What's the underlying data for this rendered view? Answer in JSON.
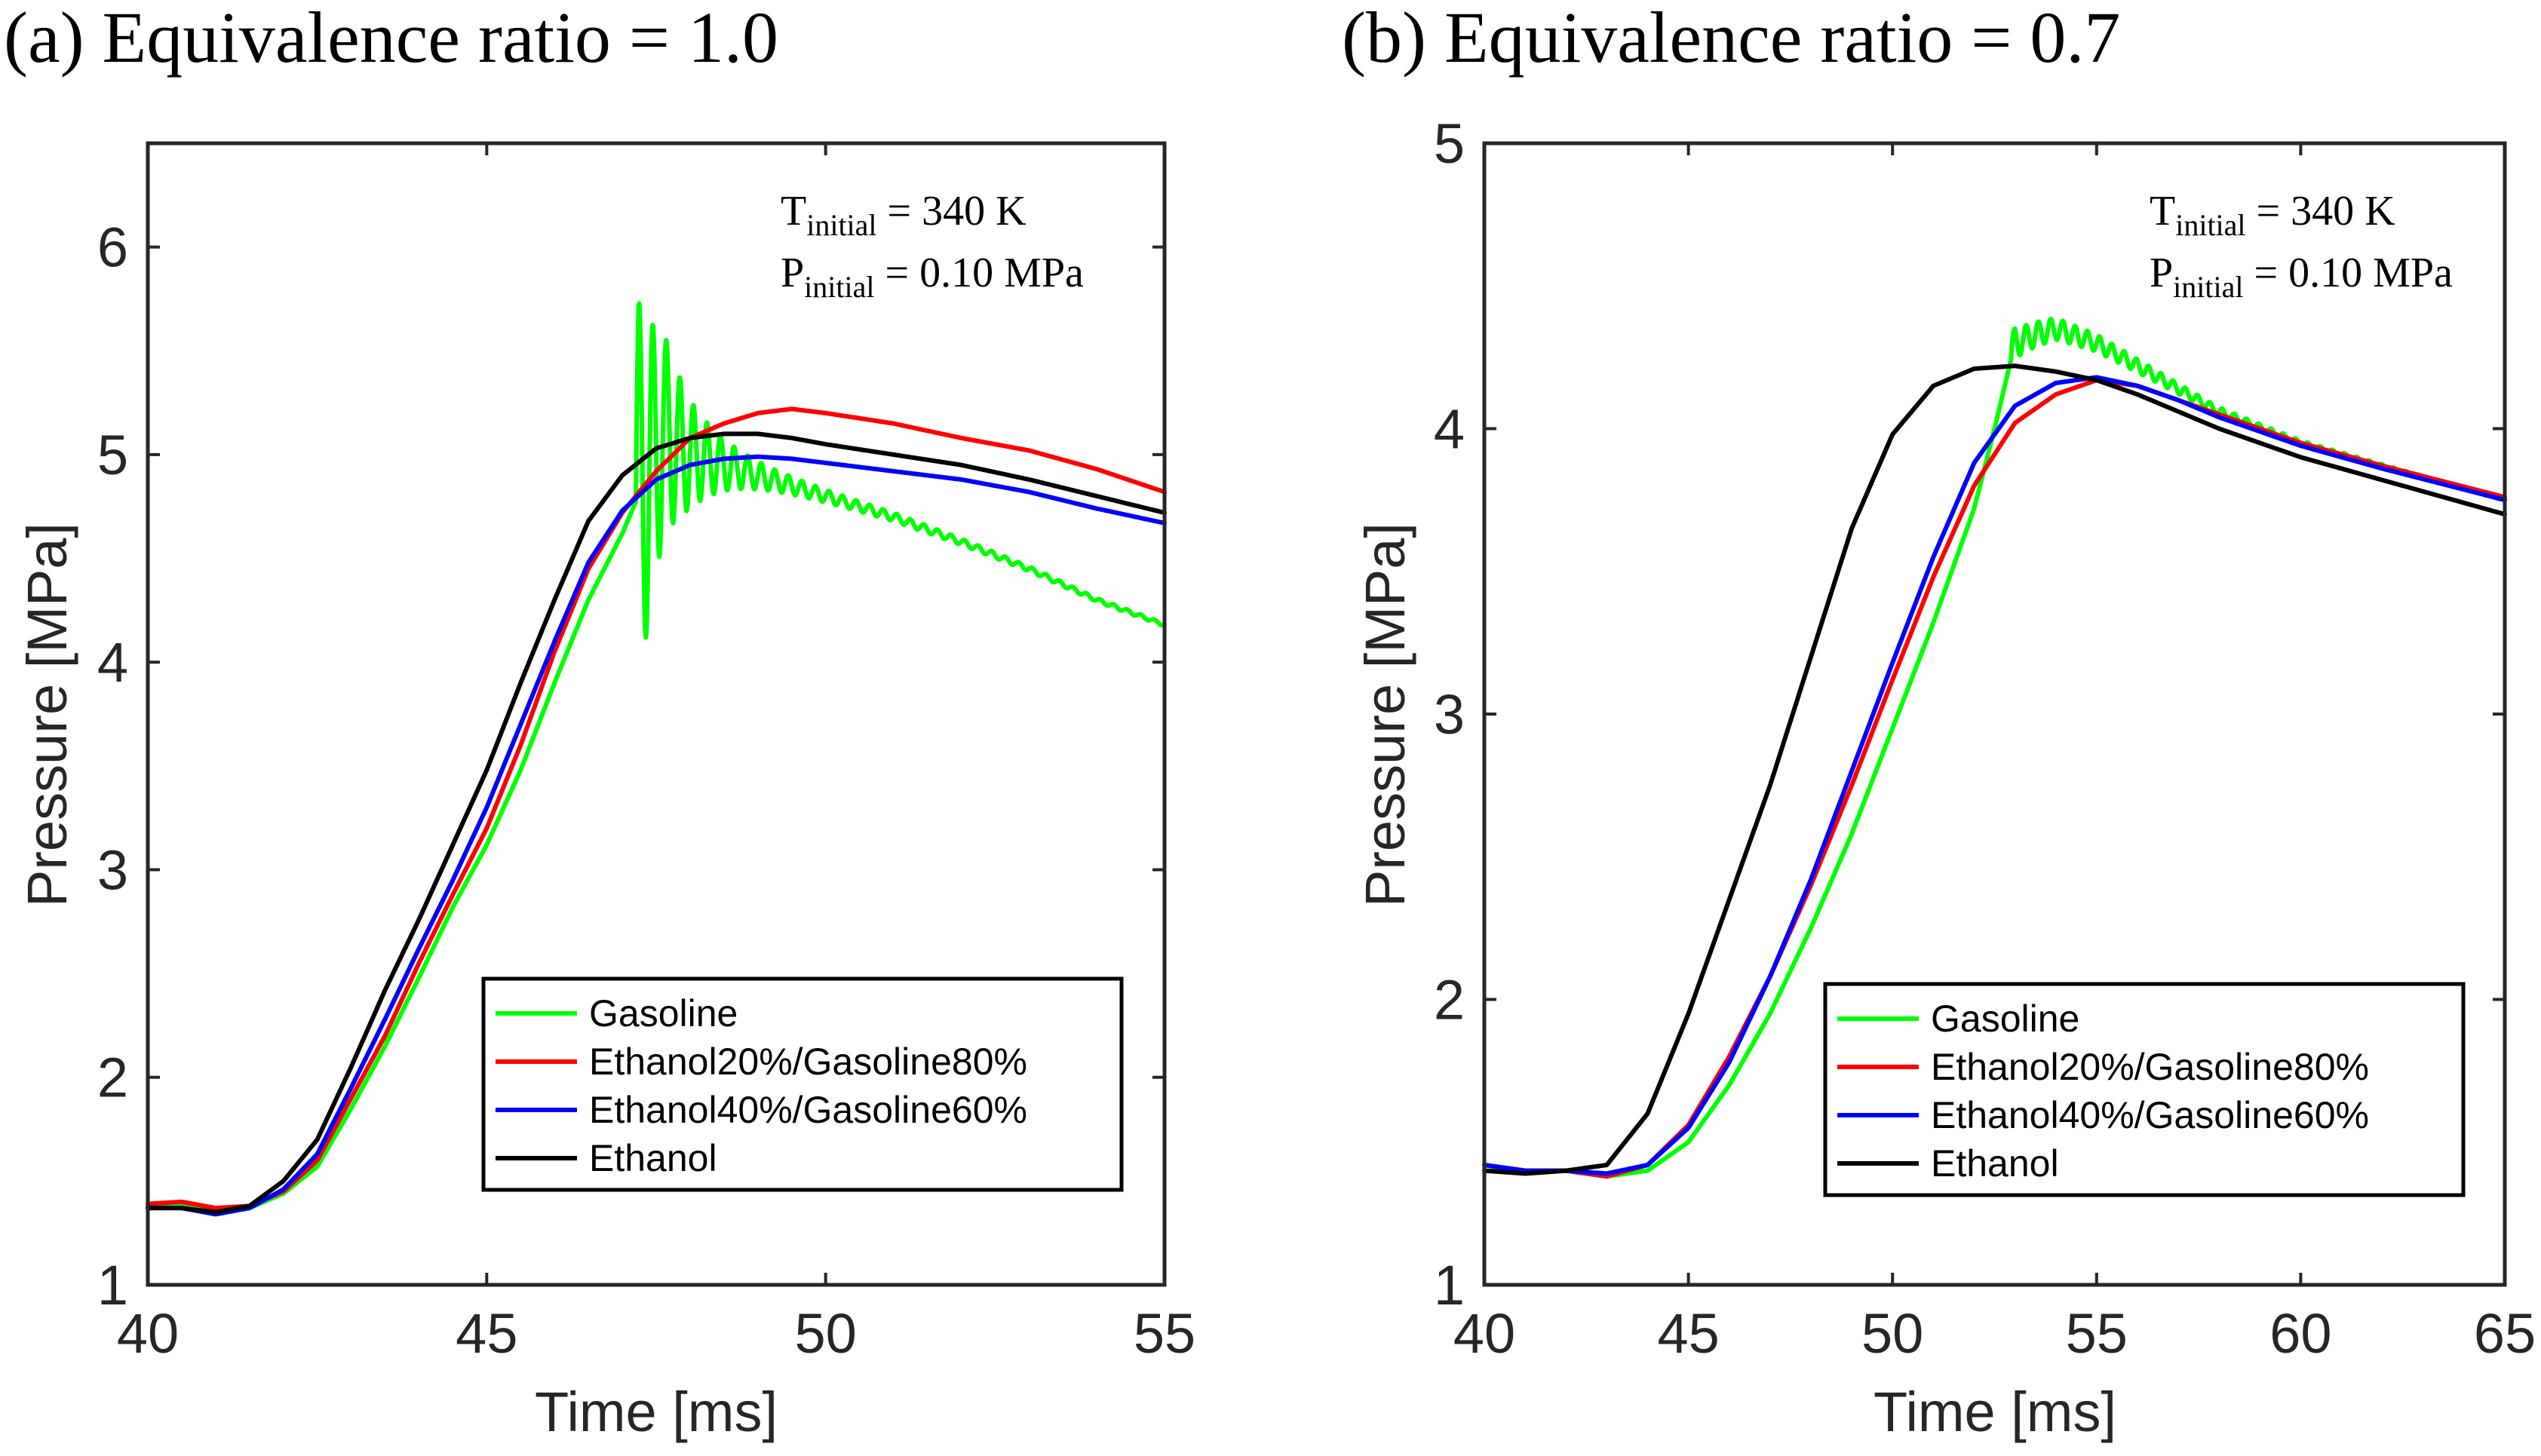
{
  "chart_data": [
    {
      "type": "line",
      "title": "(a) Equivalence ratio = 1.0",
      "xlabel": "Time [ms]",
      "ylabel": "Pressure [MPa]",
      "xlim": [
        40,
        55
      ],
      "ylim": [
        1,
        6.5
      ],
      "xticks": [
        "40",
        "45",
        "50",
        "55"
      ],
      "yticks": [
        "1",
        "2",
        "3",
        "4",
        "5",
        "6"
      ],
      "annotation": {
        "line1_main": "T",
        "line1_sub": "initial",
        "line1_rest": " = 340 K",
        "line2_main": "P",
        "line2_sub": "initial",
        "line2_rest": " = 0.10 MPa"
      },
      "legend": "bottom-right",
      "series": [
        {
          "name": "Gasoline",
          "color": "#00ff00",
          "oscillation": {
            "start": 47.2,
            "amp": 0.95,
            "period": 0.2,
            "decay": 0.55
          },
          "x": [
            40,
            40.5,
            41,
            41.5,
            42,
            42.5,
            43,
            43.5,
            44,
            44.5,
            45,
            45.5,
            46,
            46.5,
            47,
            47.3,
            47.6,
            48,
            48.5,
            49,
            49.5,
            50,
            51,
            52,
            53,
            54,
            55
          ],
          "y": [
            1.38,
            1.38,
            1.35,
            1.37,
            1.44,
            1.57,
            1.85,
            2.15,
            2.48,
            2.82,
            3.12,
            3.48,
            3.9,
            4.3,
            4.62,
            4.85,
            5.1,
            5.0,
            4.95,
            4.9,
            4.85,
            4.8,
            4.7,
            4.58,
            4.45,
            4.3,
            4.18
          ]
        },
        {
          "name": "Ethanol20%/Gasoline80%",
          "color": "#ff0000",
          "x": [
            40,
            40.5,
            41,
            41.5,
            42,
            42.5,
            43,
            43.5,
            44,
            44.5,
            45,
            45.5,
            46,
            46.5,
            47,
            47.5,
            48,
            48.5,
            49,
            49.5,
            50,
            51,
            52,
            53,
            54,
            55
          ],
          "y": [
            1.39,
            1.4,
            1.37,
            1.38,
            1.45,
            1.6,
            1.9,
            2.2,
            2.55,
            2.88,
            3.2,
            3.6,
            4.05,
            4.45,
            4.72,
            4.92,
            5.08,
            5.15,
            5.2,
            5.22,
            5.2,
            5.15,
            5.08,
            5.02,
            4.93,
            4.82
          ]
        },
        {
          "name": "Ethanol40%/Gasoline60%",
          "color": "#0000ff",
          "x": [
            40,
            40.5,
            41,
            41.5,
            42,
            42.5,
            43,
            43.5,
            44,
            44.5,
            45,
            45.5,
            46,
            46.5,
            47,
            47.5,
            48,
            48.5,
            49,
            49.5,
            50,
            51,
            52,
            53,
            54,
            55
          ],
          "y": [
            1.37,
            1.37,
            1.34,
            1.37,
            1.46,
            1.63,
            1.95,
            2.28,
            2.62,
            2.95,
            3.3,
            3.7,
            4.1,
            4.48,
            4.73,
            4.88,
            4.95,
            4.98,
            4.99,
            4.98,
            4.96,
            4.92,
            4.88,
            4.82,
            4.74,
            4.67
          ]
        },
        {
          "name": "Ethanol",
          "color": "#000000",
          "x": [
            40,
            40.5,
            41,
            41.5,
            42,
            42.5,
            43,
            43.5,
            44,
            44.5,
            45,
            45.5,
            46,
            46.5,
            47,
            47.5,
            48,
            48.5,
            49,
            49.5,
            50,
            51,
            52,
            53,
            54,
            55
          ],
          "y": [
            1.37,
            1.37,
            1.35,
            1.38,
            1.5,
            1.7,
            2.05,
            2.42,
            2.76,
            3.12,
            3.48,
            3.9,
            4.3,
            4.68,
            4.9,
            5.03,
            5.08,
            5.1,
            5.1,
            5.08,
            5.05,
            5.0,
            4.95,
            4.88,
            4.8,
            4.72
          ]
        }
      ]
    },
    {
      "type": "line",
      "title": "(b) Equivalence ratio = 0.7",
      "xlabel": "Time [ms]",
      "ylabel": "Pressure [MPa]",
      "xlim": [
        40,
        65
      ],
      "ylim": [
        1,
        5
      ],
      "xticks": [
        "40",
        "45",
        "50",
        "55",
        "60",
        "65"
      ],
      "yticks": [
        "1",
        "2",
        "3",
        "4",
        "5"
      ],
      "annotation": {
        "line1_main": "T",
        "line1_sub": "initial",
        "line1_rest": " = 340 K",
        "line2_main": "P",
        "line2_sub": "initial",
        "line2_rest": " = 0.10 MPa"
      },
      "legend": "bottom-right",
      "series": [
        {
          "name": "Gasoline",
          "color": "#00ff00",
          "oscillation": {
            "start": 52.9,
            "amp": 0.025,
            "period": 0.3,
            "decay": 0.1
          },
          "x": [
            40,
            41,
            42,
            43,
            44,
            45,
            46,
            47,
            48,
            49,
            50,
            51,
            52,
            52.5,
            53,
            53.5,
            54,
            55,
            56,
            57,
            58,
            60,
            62,
            65
          ],
          "y": [
            1.42,
            1.39,
            1.4,
            1.38,
            1.4,
            1.5,
            1.7,
            1.95,
            2.25,
            2.58,
            2.95,
            3.32,
            3.72,
            4.0,
            4.3,
            4.33,
            4.35,
            4.3,
            4.22,
            4.14,
            4.06,
            3.95,
            3.87,
            3.75
          ]
        },
        {
          "name": "Ethanol20%/Gasoline80%",
          "color": "#ff0000",
          "x": [
            40,
            41,
            42,
            43,
            44,
            45,
            46,
            47,
            48,
            49,
            50,
            51,
            52,
            53,
            54,
            55,
            56,
            57,
            58,
            60,
            62,
            65
          ],
          "y": [
            1.42,
            1.4,
            1.4,
            1.38,
            1.42,
            1.56,
            1.8,
            2.08,
            2.4,
            2.75,
            3.12,
            3.48,
            3.8,
            4.02,
            4.12,
            4.17,
            4.15,
            4.1,
            4.05,
            3.95,
            3.87,
            3.76
          ]
        },
        {
          "name": "Ethanol40%/Gasoline60%",
          "color": "#0000ff",
          "x": [
            40,
            41,
            42,
            43,
            44,
            45,
            46,
            47,
            48,
            49,
            50,
            51,
            52,
            53,
            54,
            55,
            56,
            57,
            58,
            60,
            62,
            65
          ],
          "y": [
            1.42,
            1.4,
            1.4,
            1.39,
            1.42,
            1.55,
            1.78,
            2.08,
            2.42,
            2.8,
            3.18,
            3.55,
            3.88,
            4.08,
            4.16,
            4.18,
            4.15,
            4.1,
            4.04,
            3.94,
            3.86,
            3.75
          ]
        },
        {
          "name": "Ethanol",
          "color": "#000000",
          "x": [
            40,
            41,
            42,
            43,
            44,
            45,
            46,
            47,
            48,
            49,
            50,
            51,
            52,
            53,
            54,
            55,
            56,
            57,
            58,
            60,
            62,
            65
          ],
          "y": [
            1.4,
            1.39,
            1.4,
            1.42,
            1.6,
            1.95,
            2.35,
            2.75,
            3.2,
            3.65,
            3.98,
            4.15,
            4.21,
            4.22,
            4.2,
            4.17,
            4.12,
            4.06,
            4.0,
            3.9,
            3.82,
            3.7
          ]
        }
      ]
    }
  ]
}
